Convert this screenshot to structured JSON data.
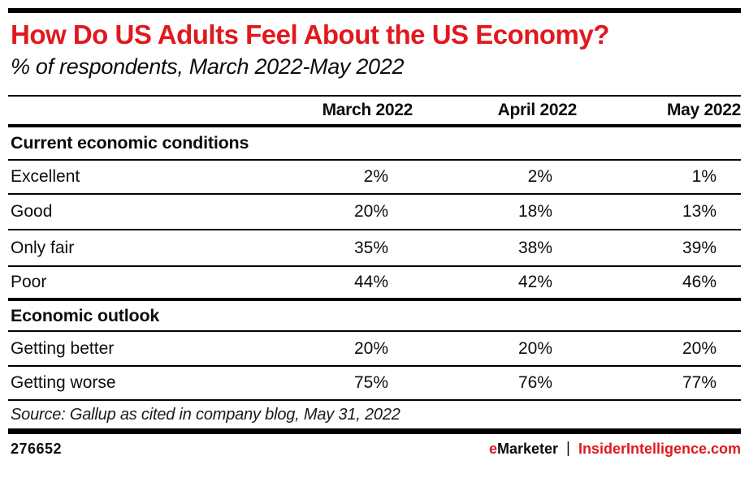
{
  "colors": {
    "accent_red": "#e0191f",
    "rule_black": "#000000",
    "background": "#ffffff"
  },
  "header": {
    "title": "How Do US Adults Feel About the US Economy?",
    "subtitle": "% of respondents, March 2022-May 2022"
  },
  "chart_data": {
    "type": "table",
    "title": "How Do US Adults Feel About the US Economy?",
    "subtitle": "% of respondents, March 2022-May 2022",
    "columns": [
      "March 2022",
      "April 2022",
      "May 2022"
    ],
    "sections": [
      {
        "label": "Current economic conditions",
        "rows": [
          {
            "label": "Excellent",
            "values": [
              "2%",
              "2%",
              "1%"
            ]
          },
          {
            "label": "Good",
            "values": [
              "20%",
              "18%",
              "13%"
            ]
          },
          {
            "label": "Only fair",
            "values": [
              "35%",
              "38%",
              "39%"
            ]
          },
          {
            "label": "Poor",
            "values": [
              "44%",
              "42%",
              "46%"
            ]
          }
        ]
      },
      {
        "label": "Economic outlook",
        "rows": [
          {
            "label": "Getting better",
            "values": [
              "20%",
              "20%",
              "20%"
            ]
          },
          {
            "label": "Getting worse",
            "values": [
              "75%",
              "76%",
              "77%"
            ]
          }
        ]
      }
    ],
    "source": "Source: Gallup as cited in company blog, May 31, 2022"
  },
  "footer": {
    "chart_id": "276652",
    "brand_e": "e",
    "brand_rest": "Marketer",
    "separator": "|",
    "site": "InsiderIntelligence.com"
  }
}
